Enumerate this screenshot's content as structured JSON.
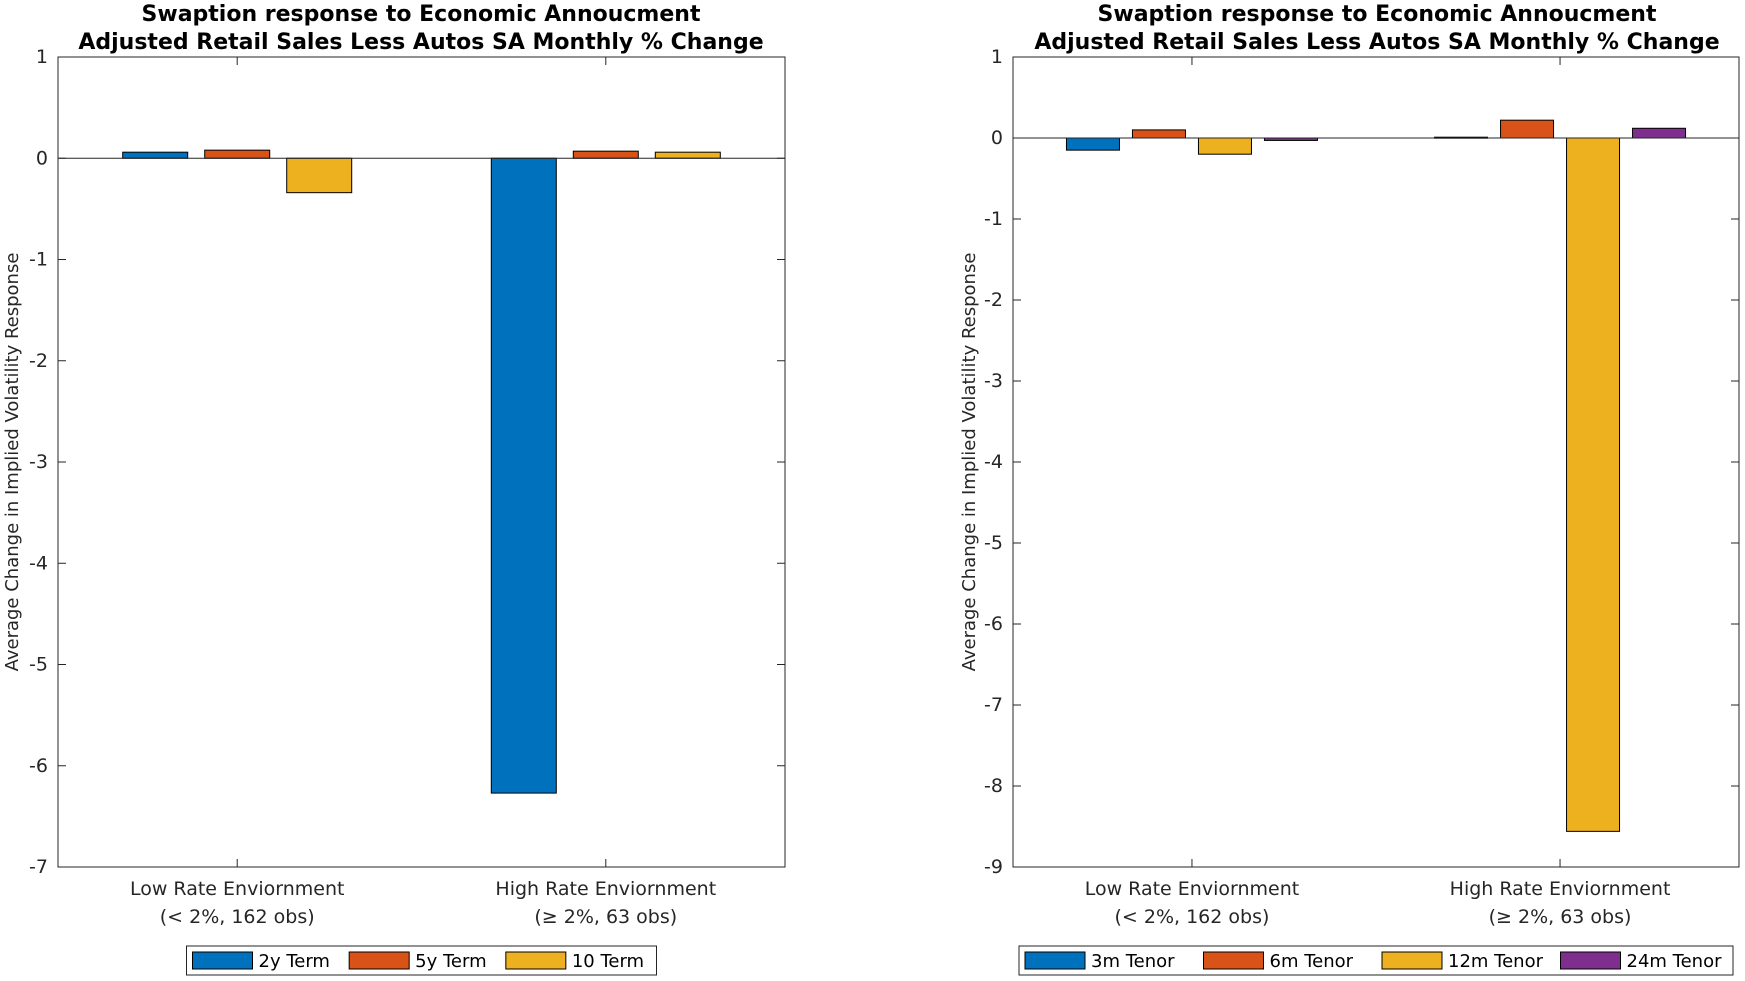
{
  "chart_data": [
    {
      "type": "bar",
      "title": [
        "Swaption response to Economic Annoucment",
        "Adjusted Retail Sales Less Autos SA Monthly % Change"
      ],
      "ylabel": "Average Change in Implied Volatility Response",
      "xlabel": "",
      "ylim": [
        -7,
        1
      ],
      "yticks": [
        1,
        0,
        -1,
        -2,
        -3,
        -4,
        -5,
        -6,
        -7
      ],
      "categories": [
        [
          "Low Rate Enviornment",
          "(< 2%, 162 obs)"
        ],
        [
          "High Rate Enviornment",
          "(≥ 2%, 63 obs)"
        ]
      ],
      "series": [
        {
          "name": "2y Term",
          "color": "#0072BD",
          "values": [
            0.06,
            -6.27
          ]
        },
        {
          "name": "5y Term",
          "color": "#D95319",
          "values": [
            0.08,
            0.07
          ]
        },
        {
          "name": "10 Term",
          "color": "#EDB120",
          "values": [
            -0.34,
            0.06
          ]
        }
      ],
      "legend": "bottom-center",
      "grid": false
    },
    {
      "type": "bar",
      "title": [
        "Swaption response to Economic Annoucment",
        "Adjusted Retail Sales Less Autos SA Monthly % Change"
      ],
      "ylabel": "Average Change in Implied Volatility Response",
      "xlabel": "",
      "ylim": [
        -9,
        1
      ],
      "yticks": [
        1,
        0,
        -1,
        -2,
        -3,
        -4,
        -5,
        -6,
        -7,
        -8,
        -9
      ],
      "categories": [
        [
          "Low Rate Enviornment",
          "(< 2%, 162 obs)"
        ],
        [
          "High Rate Enviornment",
          "(≥ 2%, 63 obs)"
        ]
      ],
      "series": [
        {
          "name": "3m Tenor",
          "color": "#0072BD",
          "values": [
            -0.15,
            0.01
          ]
        },
        {
          "name": "6m Tenor",
          "color": "#D95319",
          "values": [
            0.1,
            0.22
          ]
        },
        {
          "name": "12m Tenor",
          "color": "#EDB120",
          "values": [
            -0.2,
            -8.56
          ]
        },
        {
          "name": "24m Tenor",
          "color": "#7E2F8E",
          "values": [
            -0.03,
            0.12
          ]
        }
      ],
      "legend": "bottom-center",
      "grid": false
    }
  ]
}
